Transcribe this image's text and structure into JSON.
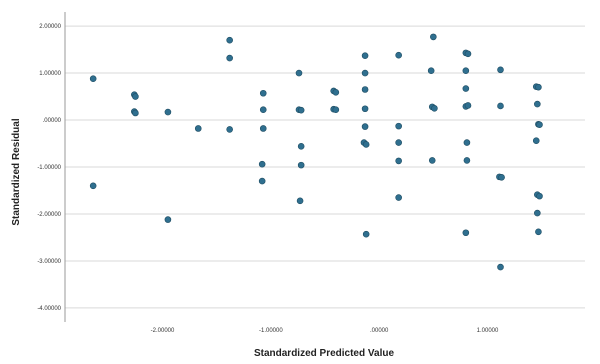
{
  "chart_data": {
    "type": "scatter",
    "title": "",
    "xlabel": "Standardized Predicted Value",
    "ylabel": "Standardized Residual",
    "xlim": [
      -2.9,
      1.9
    ],
    "ylim": [
      -4.3,
      2.3
    ],
    "xticks": [
      {
        "value": -2.0,
        "label": "-2.00000"
      },
      {
        "value": -1.0,
        "label": "-1.00000"
      },
      {
        "value": 0.0,
        "label": ".00000"
      },
      {
        "value": 1.0,
        "label": "1.00000"
      }
    ],
    "yticks": [
      {
        "value": 2.0,
        "label": "2.00000"
      },
      {
        "value": 1.0,
        "label": "1.00000"
      },
      {
        "value": 0.0,
        "label": ".00000"
      },
      {
        "value": -1.0,
        "label": "-1.00000"
      },
      {
        "value": -2.0,
        "label": "-2.00000"
      },
      {
        "value": -3.0,
        "label": "-3.00000"
      },
      {
        "value": -4.0,
        "label": "-4.00000"
      }
    ],
    "grid": "horizontal",
    "marker_color": "#2f6f8f",
    "points": [
      {
        "x": -2.64,
        "y": 0.88
      },
      {
        "x": -2.64,
        "y": -1.4
      },
      {
        "x": -2.26,
        "y": 0.54
      },
      {
        "x": -2.25,
        "y": 0.5
      },
      {
        "x": -2.26,
        "y": 0.18
      },
      {
        "x": -2.25,
        "y": 0.15
      },
      {
        "x": -1.95,
        "y": 0.17
      },
      {
        "x": -1.95,
        "y": -2.12
      },
      {
        "x": -1.67,
        "y": -0.18
      },
      {
        "x": -1.38,
        "y": 1.7
      },
      {
        "x": -1.38,
        "y": 1.32
      },
      {
        "x": -1.38,
        "y": -0.2
      },
      {
        "x": -1.07,
        "y": 0.57
      },
      {
        "x": -1.07,
        "y": 0.22
      },
      {
        "x": -1.07,
        "y": -0.18
      },
      {
        "x": -1.08,
        "y": -0.94
      },
      {
        "x": -1.08,
        "y": -1.3
      },
      {
        "x": -0.74,
        "y": 1.0
      },
      {
        "x": -0.74,
        "y": 0.22
      },
      {
        "x": -0.72,
        "y": 0.21
      },
      {
        "x": -0.72,
        "y": -0.56
      },
      {
        "x": -0.72,
        "y": -0.96
      },
      {
        "x": -0.73,
        "y": -1.72
      },
      {
        "x": -0.42,
        "y": 0.62
      },
      {
        "x": -0.4,
        "y": 0.59
      },
      {
        "x": -0.42,
        "y": 0.23
      },
      {
        "x": -0.4,
        "y": 0.22
      },
      {
        "x": -0.13,
        "y": 1.37
      },
      {
        "x": -0.13,
        "y": 1.0
      },
      {
        "x": -0.13,
        "y": 0.65
      },
      {
        "x": -0.13,
        "y": 0.24
      },
      {
        "x": -0.13,
        "y": -0.14
      },
      {
        "x": -0.14,
        "y": -0.48
      },
      {
        "x": -0.12,
        "y": -0.52
      },
      {
        "x": -0.12,
        "y": -2.43
      },
      {
        "x": 0.18,
        "y": 1.38
      },
      {
        "x": 0.18,
        "y": -0.13
      },
      {
        "x": 0.18,
        "y": -0.48
      },
      {
        "x": 0.18,
        "y": -0.87
      },
      {
        "x": 0.18,
        "y": -1.65
      },
      {
        "x": 0.5,
        "y": 1.77
      },
      {
        "x": 0.48,
        "y": 1.05
      },
      {
        "x": 0.49,
        "y": 0.28
      },
      {
        "x": 0.51,
        "y": 0.25
      },
      {
        "x": 0.49,
        "y": -0.86
      },
      {
        "x": 0.8,
        "y": 1.43
      },
      {
        "x": 0.82,
        "y": 1.41
      },
      {
        "x": 0.8,
        "y": 1.05
      },
      {
        "x": 0.8,
        "y": 0.67
      },
      {
        "x": 0.8,
        "y": 0.29
      },
      {
        "x": 0.82,
        "y": 0.31
      },
      {
        "x": 0.81,
        "y": -0.48
      },
      {
        "x": 0.81,
        "y": -0.86
      },
      {
        "x": 0.8,
        "y": -2.4
      },
      {
        "x": 1.12,
        "y": 1.07
      },
      {
        "x": 1.12,
        "y": 0.3
      },
      {
        "x": 1.11,
        "y": -1.21
      },
      {
        "x": 1.13,
        "y": -1.22
      },
      {
        "x": 1.12,
        "y": -3.13
      },
      {
        "x": 1.45,
        "y": 0.71
      },
      {
        "x": 1.47,
        "y": 0.7
      },
      {
        "x": 1.46,
        "y": 0.34
      },
      {
        "x": 1.47,
        "y": -0.09
      },
      {
        "x": 1.48,
        "y": -0.1
      },
      {
        "x": 1.45,
        "y": -0.44
      },
      {
        "x": 1.46,
        "y": -1.59
      },
      {
        "x": 1.48,
        "y": -1.62
      },
      {
        "x": 1.46,
        "y": -1.98
      },
      {
        "x": 1.47,
        "y": -2.38
      }
    ]
  }
}
